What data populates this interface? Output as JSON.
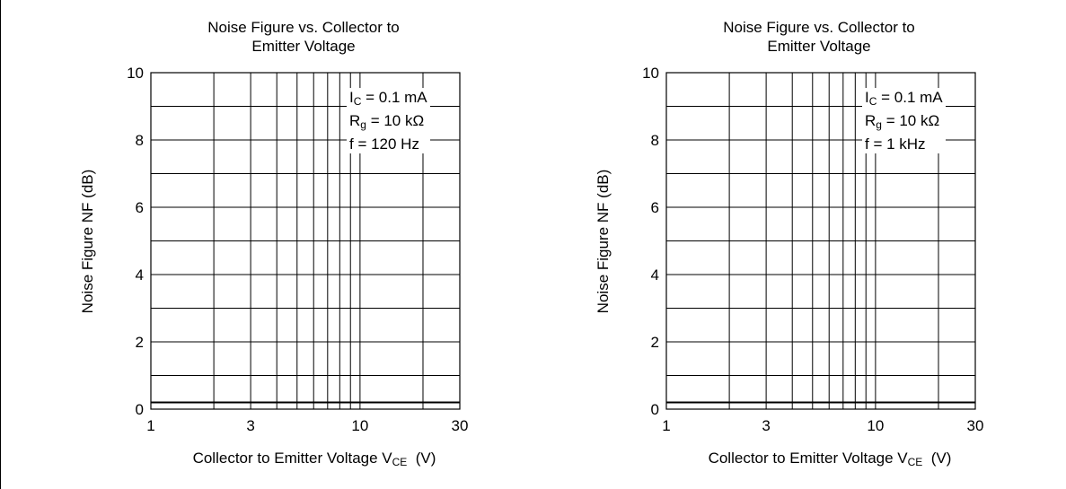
{
  "chart_data": [
    {
      "type": "line",
      "title_lines": [
        "Noise Figure vs. Collector to",
        "Emitter Voltage"
      ],
      "xlabel_text": "Collector to Emitter Voltage  V",
      "xlabel_sub": "CE",
      "xlabel_unit": "(V)",
      "ylabel": "Noise Figure  NF  (dB)",
      "x_scale": "log",
      "xlim": [
        1,
        30
      ],
      "ylim": [
        0,
        10
      ],
      "x_ticks": [
        1,
        3,
        10,
        30
      ],
      "x_tick_labels": [
        "1",
        "3",
        "10",
        "30"
      ],
      "y_ticks": [
        0,
        2,
        4,
        6,
        8,
        10
      ],
      "y_tick_labels": [
        "0",
        "2",
        "4",
        "6",
        "8",
        "10"
      ],
      "grid": true,
      "params": [
        {
          "prefix": "I",
          "sub": "C",
          "rest": " = 0.1 mA"
        },
        {
          "prefix": "R",
          "sub": "g",
          "rest": " = 10 kΩ"
        },
        {
          "prefix": "f = 120 Hz",
          "sub": "",
          "rest": ""
        }
      ],
      "series": [
        {
          "x": [
            1,
            30
          ],
          "y": [
            0.2,
            0.2
          ]
        }
      ]
    },
    {
      "type": "line",
      "title_lines": [
        "Noise Figure vs. Collector to",
        "Emitter Voltage"
      ],
      "xlabel_text": "Collector to Emitter Voltage  V",
      "xlabel_sub": "CE",
      "xlabel_unit": "(V)",
      "ylabel": "Noise Figure  NF  (dB)",
      "x_scale": "log",
      "xlim": [
        1,
        30
      ],
      "ylim": [
        0,
        10
      ],
      "x_ticks": [
        1,
        3,
        10,
        30
      ],
      "x_tick_labels": [
        "1",
        "3",
        "10",
        "30"
      ],
      "y_ticks": [
        0,
        2,
        4,
        6,
        8,
        10
      ],
      "y_tick_labels": [
        "0",
        "2",
        "4",
        "6",
        "8",
        "10"
      ],
      "grid": true,
      "params": [
        {
          "prefix": "I",
          "sub": "C",
          "rest": " = 0.1 mA"
        },
        {
          "prefix": "R",
          "sub": "g",
          "rest": " = 10 kΩ"
        },
        {
          "prefix": "f = 1 kHz",
          "sub": "",
          "rest": ""
        }
      ],
      "series": [
        {
          "x": [
            1,
            30
          ],
          "y": [
            0.2,
            0.2
          ]
        }
      ]
    }
  ]
}
